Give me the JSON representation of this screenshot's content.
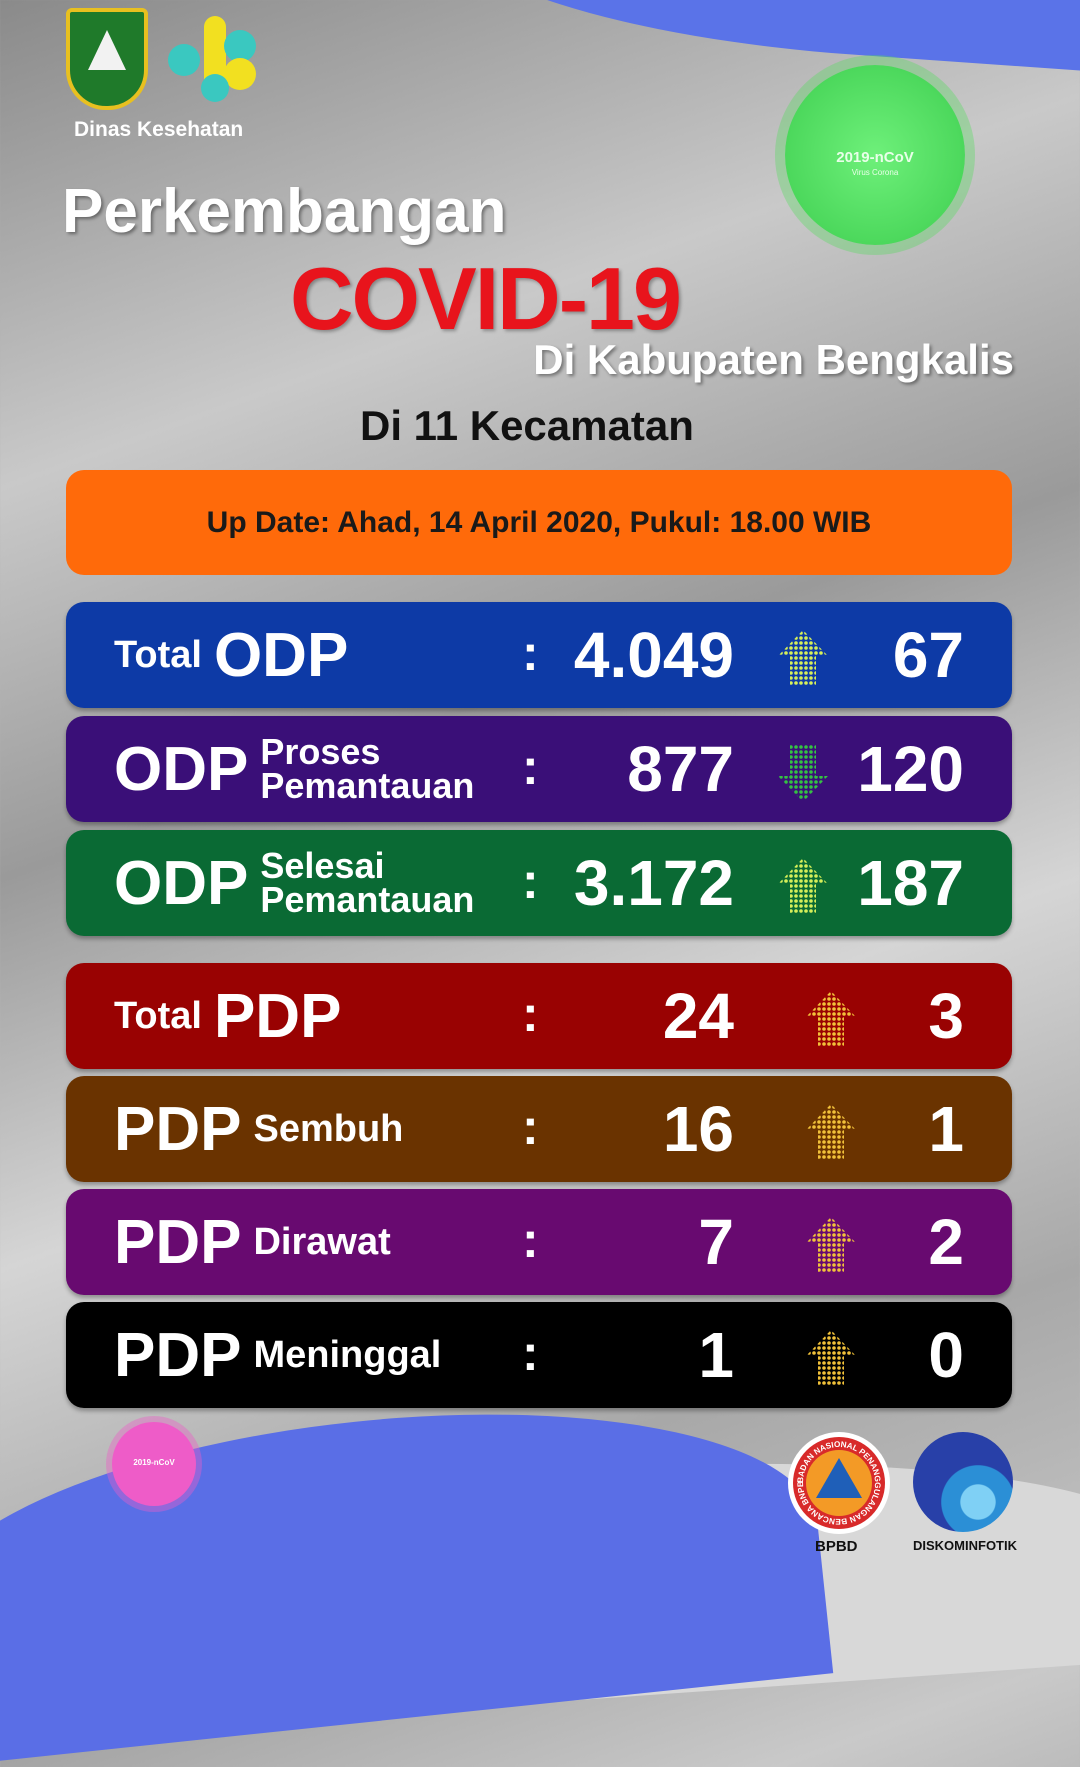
{
  "header": {
    "agency": "Dinas Kesehatan",
    "virus_badge": {
      "title": "2019-nCoV",
      "subtitle": "Virus Corona"
    }
  },
  "title": {
    "line1": "Perkembangan",
    "line2": "COVID-19",
    "line3": "Di Kabupaten Bengkalis",
    "line4": "Di 11 Kecamatan"
  },
  "update": "Up Date: Ahad, 14 April 2020, Pukul: 18.00 WIB",
  "rows": [
    {
      "prefix": "Total",
      "main": "ODP",
      "sub1": "",
      "sub2": "",
      "value": "4.049",
      "trend": "up",
      "change": "67",
      "color": "#0d3aa6"
    },
    {
      "prefix": "",
      "main": "ODP",
      "sub1": "Proses",
      "sub2": "Pemantauan",
      "value": "877",
      "trend": "down",
      "change": "120",
      "color": "#3a0f78"
    },
    {
      "prefix": "",
      "main": "ODP",
      "sub1": "Selesai",
      "sub2": "Pemantauan",
      "value": "3.172",
      "trend": "up",
      "change": "187",
      "color": "#0a6a34"
    },
    {
      "prefix": "Total",
      "main": "PDP",
      "sub1": "",
      "sub2": "",
      "value": "24",
      "trend": "up",
      "change": "3",
      "color": "#990202"
    },
    {
      "prefix": "",
      "main": "PDP",
      "sub1": "Sembuh",
      "sub2": "",
      "value": "16",
      "trend": "up",
      "change": "1",
      "color": "#6a3300"
    },
    {
      "prefix": "",
      "main": "PDP",
      "sub1": "Dirawat",
      "sub2": "",
      "value": "7",
      "trend": "up",
      "change": "2",
      "color": "#680a70"
    },
    {
      "prefix": "",
      "main": "PDP",
      "sub1": "Meninggal",
      "sub2": "",
      "value": "1",
      "trend": "up",
      "change": "0",
      "color": "#000000"
    }
  ],
  "separator": ":",
  "footer": {
    "virus_badge": "2019-nCoV",
    "logo1_caption": "BPBD",
    "logo1_text": "BADAN NASIONAL PENANGGULANGAN BENCANA BNPB",
    "logo2_caption": "DISKOMINFOTIK"
  }
}
